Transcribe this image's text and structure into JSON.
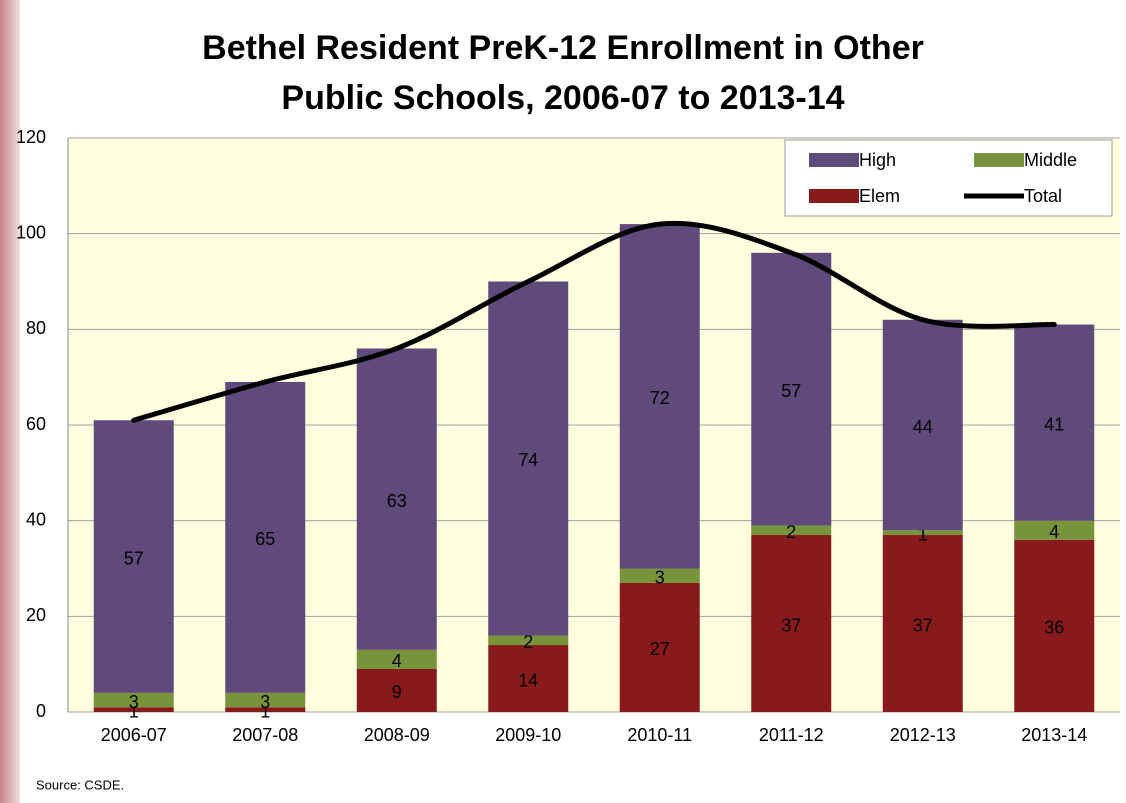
{
  "chart_data": {
    "type": "bar",
    "stacked": true,
    "title": [
      "Bethel Resident PreK-12 Enrollment in Other",
      "Public Schools, 2006-07 to 2013-14"
    ],
    "categories": [
      "2006-07",
      "2007-08",
      "2008-09",
      "2009-10",
      "2010-11",
      "2011-12",
      "2012-13",
      "2013-14"
    ],
    "series": [
      {
        "name": "Elem",
        "color": "#891a1b",
        "values": [
          1,
          1,
          9,
          14,
          27,
          37,
          37,
          36
        ]
      },
      {
        "name": "Middle",
        "color": "#77933c",
        "values": [
          3,
          3,
          4,
          2,
          3,
          2,
          1,
          4
        ]
      },
      {
        "name": "High",
        "color": "#604a7b",
        "values": [
          57,
          65,
          63,
          74,
          72,
          57,
          44,
          41
        ]
      },
      {
        "name": "Total",
        "color": "#000000",
        "type": "line",
        "smooth": true,
        "values": [
          61,
          69,
          76,
          90,
          102,
          96,
          82,
          81
        ]
      }
    ],
    "ylim": [
      0,
      120
    ],
    "yticks": [
      0,
      20,
      40,
      60,
      80,
      100,
      120
    ],
    "grid": true,
    "legend": "upper right",
    "source": "Source: CSDE."
  }
}
